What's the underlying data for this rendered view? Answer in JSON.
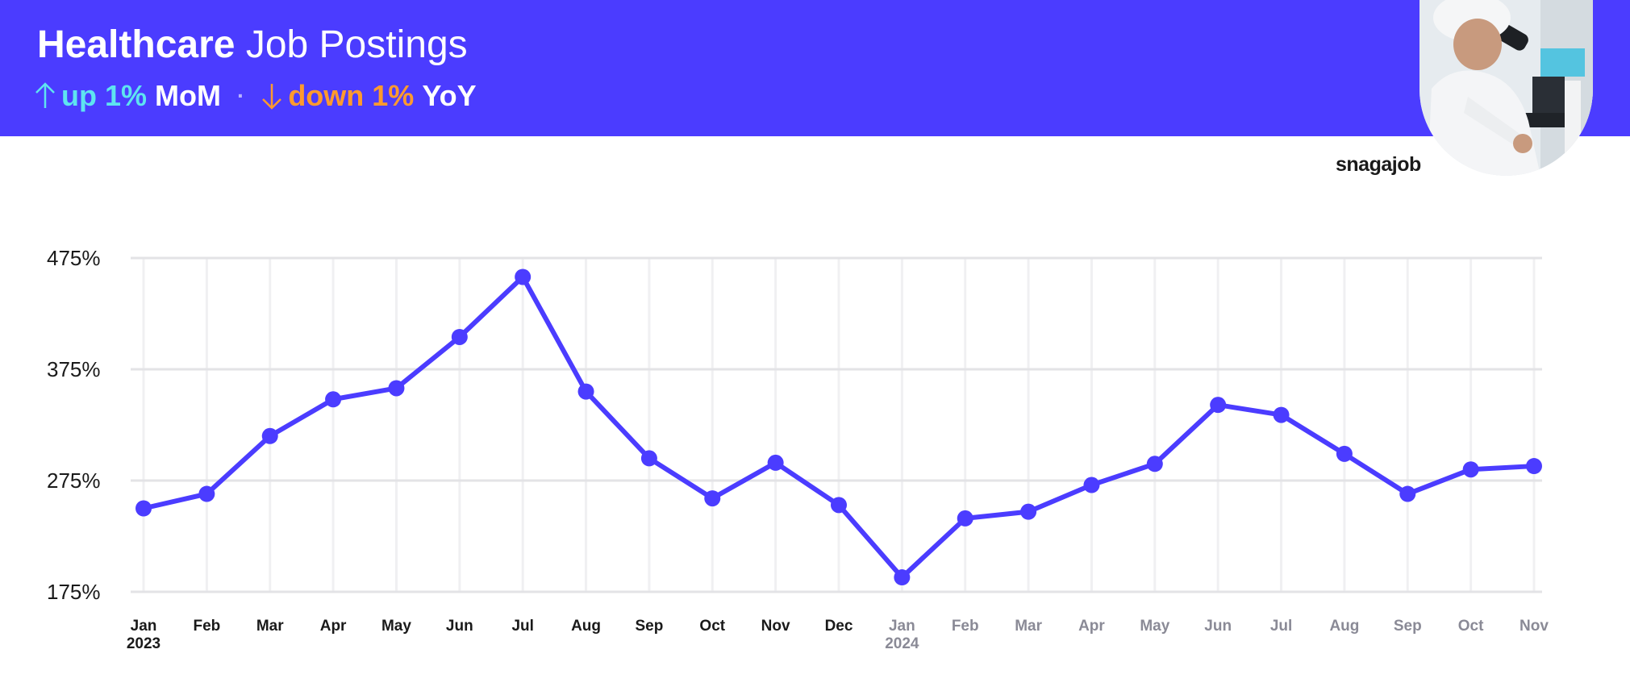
{
  "header": {
    "title_bold": "Healthcare",
    "title_light": "Job Postings",
    "mom_value": "up 1%",
    "mom_label": "MoM",
    "separator": "·",
    "yoy_value": "down 1%",
    "yoy_label": "YoY"
  },
  "brand": "snagajob",
  "photo": {
    "subject": "lab-technician-microscope"
  },
  "colors": {
    "banner": "#4b3cff",
    "line": "#4b3cff",
    "up": "#5ee4f0",
    "down": "#ff9a2e",
    "axis_2023": "#1a1a1a",
    "axis_2024": "#8a8a96"
  },
  "chart_data": {
    "type": "line",
    "title": "Healthcare Job Postings",
    "xlabel": "",
    "ylabel": "",
    "ylim": [
      175,
      475
    ],
    "yticks": [
      "475%",
      "375%",
      "275%",
      "175%"
    ],
    "ytick_values": [
      475,
      375,
      275,
      175
    ],
    "grid": true,
    "x": [
      "Jan",
      "Feb",
      "Mar",
      "Apr",
      "May",
      "Jun",
      "Jul",
      "Aug",
      "Sep",
      "Oct",
      "Nov",
      "Dec",
      "Jan",
      "Feb",
      "Mar",
      "Apr",
      "May",
      "Jun",
      "Jul",
      "Aug",
      "Sep",
      "Oct",
      "Nov"
    ],
    "year_labels": [
      {
        "index": 0,
        "label": "2023"
      },
      {
        "index": 12,
        "label": "2024"
      }
    ],
    "series": [
      {
        "values": [
          250,
          263,
          315,
          348,
          358,
          404,
          458,
          355,
          295,
          259,
          291,
          253,
          188,
          241,
          247,
          271,
          290,
          343,
          334,
          299,
          263,
          285,
          288
        ]
      }
    ]
  }
}
